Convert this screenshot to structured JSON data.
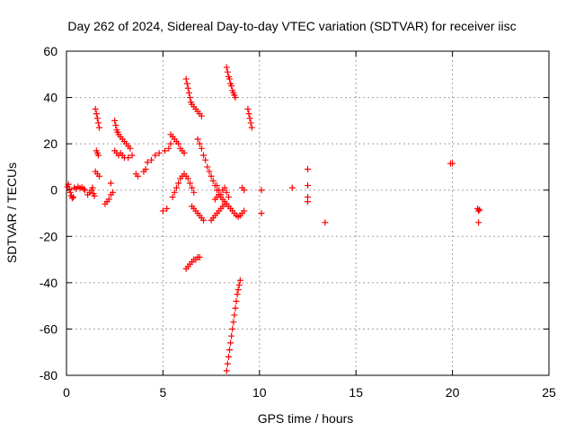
{
  "chart_data": {
    "type": "scatter",
    "title": "Day 262 of 2024, Sidereal Day-to-day VTEC variation (SDTVAR) for receiver iisc",
    "xlabel": "GPS time / hours",
    "ylabel": "SDTVAR / TECUs",
    "xlim": [
      0,
      25
    ],
    "ylim": [
      -80,
      60
    ],
    "xticks": [
      "0",
      "5",
      "10",
      "15",
      "20",
      "25"
    ],
    "yticks": [
      "60",
      "40",
      "20",
      "0",
      "-20",
      "-40",
      "-60",
      "-80"
    ],
    "grid": true,
    "marker": "+",
    "marker_color": "#ff0000",
    "points": [
      [
        0.05,
        1.5
      ],
      [
        0.1,
        2.5
      ],
      [
        0.15,
        0.5
      ],
      [
        0.2,
        -1.0
      ],
      [
        0.25,
        -2.5
      ],
      [
        0.3,
        -3.5
      ],
      [
        0.35,
        -3.0
      ],
      [
        0.4,
        1.0
      ],
      [
        0.5,
        0.5
      ],
      [
        0.6,
        1.5
      ],
      [
        0.7,
        0.8
      ],
      [
        0.8,
        1.2
      ],
      [
        0.9,
        0.5
      ],
      [
        0.95,
        0.0
      ],
      [
        1.1,
        -2.0
      ],
      [
        1.2,
        -1.0
      ],
      [
        1.3,
        0.0
      ],
      [
        1.35,
        1.0
      ],
      [
        1.4,
        -1.5
      ],
      [
        1.45,
        -2.5
      ],
      [
        1.5,
        35
      ],
      [
        1.55,
        33
      ],
      [
        1.6,
        31
      ],
      [
        1.65,
        29
      ],
      [
        1.7,
        27
      ],
      [
        1.55,
        17
      ],
      [
        1.6,
        16
      ],
      [
        1.65,
        15
      ],
      [
        1.5,
        8
      ],
      [
        1.6,
        7
      ],
      [
        1.7,
        6
      ],
      [
        2.0,
        -6
      ],
      [
        2.1,
        -5
      ],
      [
        2.2,
        -4
      ],
      [
        2.3,
        -2
      ],
      [
        2.4,
        -1
      ],
      [
        2.3,
        3
      ],
      [
        2.5,
        30
      ],
      [
        2.55,
        28
      ],
      [
        2.6,
        26
      ],
      [
        2.65,
        25
      ],
      [
        2.7,
        24
      ],
      [
        2.8,
        23
      ],
      [
        2.9,
        22
      ],
      [
        3.0,
        21
      ],
      [
        3.1,
        20
      ],
      [
        3.2,
        19
      ],
      [
        3.3,
        18
      ],
      [
        2.5,
        17
      ],
      [
        2.6,
        16
      ],
      [
        2.7,
        15
      ],
      [
        2.8,
        16
      ],
      [
        2.9,
        15
      ],
      [
        3.0,
        14
      ],
      [
        3.2,
        14
      ],
      [
        3.4,
        15
      ],
      [
        3.6,
        7
      ],
      [
        3.7,
        6
      ],
      [
        4.0,
        8
      ],
      [
        4.1,
        9
      ],
      [
        4.2,
        12
      ],
      [
        4.4,
        13
      ],
      [
        4.6,
        15
      ],
      [
        4.8,
        16
      ],
      [
        5.0,
        -9
      ],
      [
        5.2,
        -8
      ],
      [
        5.1,
        17
      ],
      [
        5.3,
        18
      ],
      [
        5.4,
        20
      ],
      [
        5.4,
        24
      ],
      [
        5.5,
        23
      ],
      [
        5.6,
        22
      ],
      [
        5.7,
        21
      ],
      [
        5.8,
        20
      ],
      [
        5.9,
        18
      ],
      [
        6.0,
        17
      ],
      [
        6.1,
        16
      ],
      [
        5.5,
        -3
      ],
      [
        5.6,
        -1
      ],
      [
        5.7,
        1
      ],
      [
        5.8,
        3
      ],
      [
        5.9,
        5
      ],
      [
        6.0,
        6
      ],
      [
        6.1,
        7
      ],
      [
        6.2,
        6
      ],
      [
        6.3,
        5
      ],
      [
        6.4,
        3
      ],
      [
        6.5,
        1
      ],
      [
        6.6,
        -1
      ],
      [
        6.2,
        48
      ],
      [
        6.25,
        46
      ],
      [
        6.3,
        44
      ],
      [
        6.35,
        42
      ],
      [
        6.4,
        40
      ],
      [
        6.45,
        38
      ],
      [
        6.5,
        37
      ],
      [
        6.6,
        36
      ],
      [
        6.7,
        35
      ],
      [
        6.8,
        34
      ],
      [
        6.9,
        33
      ],
      [
        7.0,
        32
      ],
      [
        6.8,
        22
      ],
      [
        6.9,
        20
      ],
      [
        7.0,
        18
      ],
      [
        7.1,
        15
      ],
      [
        7.2,
        13
      ],
      [
        7.3,
        10
      ],
      [
        7.4,
        8
      ],
      [
        7.5,
        6
      ],
      [
        7.6,
        4
      ],
      [
        7.7,
        2
      ],
      [
        7.8,
        0
      ],
      [
        7.9,
        -2
      ],
      [
        6.5,
        -7
      ],
      [
        6.6,
        -8
      ],
      [
        6.7,
        -9
      ],
      [
        6.8,
        -10
      ],
      [
        6.9,
        -11
      ],
      [
        7.0,
        -12
      ],
      [
        7.1,
        -13
      ],
      [
        6.2,
        -34
      ],
      [
        6.3,
        -33
      ],
      [
        6.4,
        -32
      ],
      [
        6.5,
        -31
      ],
      [
        6.6,
        -30
      ],
      [
        6.7,
        -30
      ],
      [
        6.8,
        -29
      ],
      [
        6.9,
        -29
      ],
      [
        7.5,
        -13
      ],
      [
        7.6,
        -12
      ],
      [
        7.7,
        -11
      ],
      [
        7.8,
        -10
      ],
      [
        7.9,
        -9
      ],
      [
        8.0,
        -8
      ],
      [
        8.1,
        -7
      ],
      [
        8.2,
        -6
      ],
      [
        7.7,
        -4
      ],
      [
        7.8,
        -3
      ],
      [
        7.9,
        -2
      ],
      [
        8.0,
        -3
      ],
      [
        8.1,
        -4
      ],
      [
        8.2,
        -5
      ],
      [
        8.3,
        -6
      ],
      [
        8.4,
        -7
      ],
      [
        8.5,
        -8
      ],
      [
        8.6,
        -9
      ],
      [
        8.7,
        -10
      ],
      [
        8.8,
        -11
      ],
      [
        8.9,
        -11.5
      ],
      [
        9.0,
        -11
      ],
      [
        9.1,
        -10
      ],
      [
        9.2,
        -9
      ],
      [
        7.8,
        2
      ],
      [
        7.9,
        0
      ],
      [
        8.0,
        -2
      ],
      [
        8.1,
        0
      ],
      [
        8.2,
        1
      ],
      [
        8.3,
        -1
      ],
      [
        8.4,
        -3
      ],
      [
        8.3,
        53
      ],
      [
        8.35,
        51
      ],
      [
        8.4,
        49
      ],
      [
        8.45,
        48
      ],
      [
        8.5,
        46
      ],
      [
        8.55,
        45
      ],
      [
        8.6,
        43
      ],
      [
        8.65,
        42
      ],
      [
        8.7,
        41
      ],
      [
        8.75,
        40
      ],
      [
        8.3,
        -78
      ],
      [
        8.35,
        -75
      ],
      [
        8.4,
        -72
      ],
      [
        8.45,
        -69
      ],
      [
        8.5,
        -66
      ],
      [
        8.55,
        -63
      ],
      [
        8.6,
        -60
      ],
      [
        8.65,
        -57
      ],
      [
        8.7,
        -54
      ],
      [
        8.75,
        -51
      ],
      [
        8.8,
        -48
      ],
      [
        8.85,
        -45
      ],
      [
        8.9,
        -43
      ],
      [
        8.95,
        -41
      ],
      [
        9.0,
        -39
      ],
      [
        9.1,
        1
      ],
      [
        9.2,
        0
      ],
      [
        9.4,
        35
      ],
      [
        9.45,
        33
      ],
      [
        9.5,
        31
      ],
      [
        9.55,
        29
      ],
      [
        9.6,
        27
      ],
      [
        10.1,
        0
      ],
      [
        10.1,
        -10
      ],
      [
        11.7,
        1
      ],
      [
        12.5,
        9
      ],
      [
        12.5,
        2
      ],
      [
        12.5,
        -3
      ],
      [
        12.5,
        -5
      ],
      [
        13.4,
        -14
      ],
      [
        19.9,
        11.5
      ],
      [
        20.0,
        11.5
      ],
      [
        21.3,
        -8
      ],
      [
        21.35,
        -9
      ],
      [
        21.4,
        -8.5
      ],
      [
        21.35,
        -14
      ]
    ]
  }
}
